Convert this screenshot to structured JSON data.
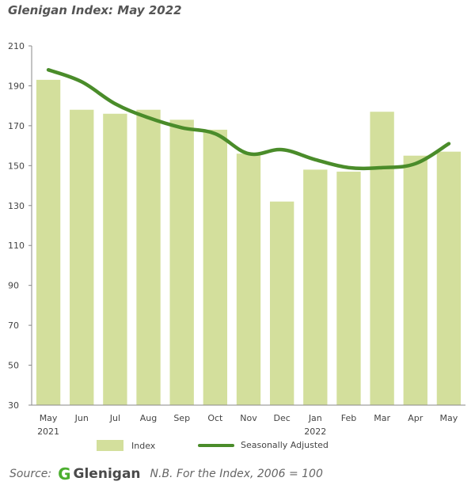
{
  "title": "Glenigan Index: May 2022",
  "chart_data": {
    "type": "bar",
    "categories": [
      "May",
      "Jun",
      "Jul",
      "Aug",
      "Sep",
      "Oct",
      "Nov",
      "Dec",
      "Jan",
      "Feb",
      "Mar",
      "Apr",
      "May"
    ],
    "category_sublabels": [
      "2021",
      "",
      "",
      "",
      "",
      "",
      "",
      "",
      "2022",
      "",
      "",
      "",
      ""
    ],
    "series": [
      {
        "name": "Index",
        "type": "bar",
        "color": "#d3df9c",
        "values": [
          193,
          178,
          176,
          178,
          173,
          168,
          156,
          132,
          148,
          147,
          177,
          155,
          157
        ]
      },
      {
        "name": "Seasonally Adjusted",
        "type": "line",
        "color": "#4a8c2a",
        "values": [
          198,
          192,
          181,
          174,
          169,
          166,
          156,
          158,
          153,
          149,
          149,
          151,
          161
        ]
      }
    ],
    "ylim": [
      30,
      210
    ],
    "yticks": [
      30,
      50,
      70,
      90,
      110,
      130,
      150,
      170,
      190,
      210
    ],
    "grid": false,
    "legend_position": "bottom"
  },
  "footer": {
    "source_label": "Source:",
    "logo_mark": "G",
    "logo_text": "Glenigan",
    "note": "N.B. For the Index, 2006 = 100"
  }
}
